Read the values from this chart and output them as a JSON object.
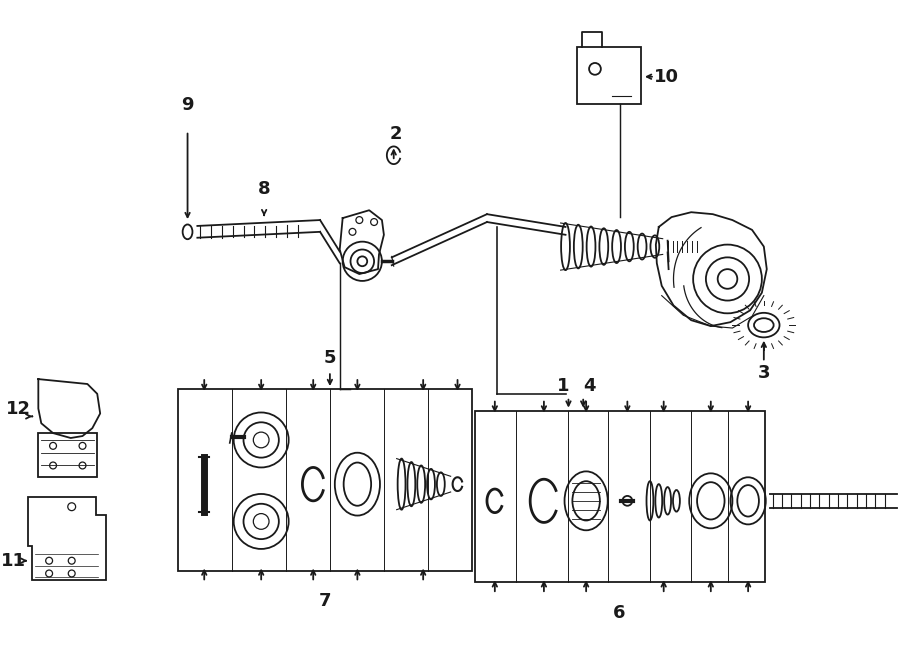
{
  "bg_color": "#ffffff",
  "line_color": "#1a1a1a",
  "lw": 1.3
}
